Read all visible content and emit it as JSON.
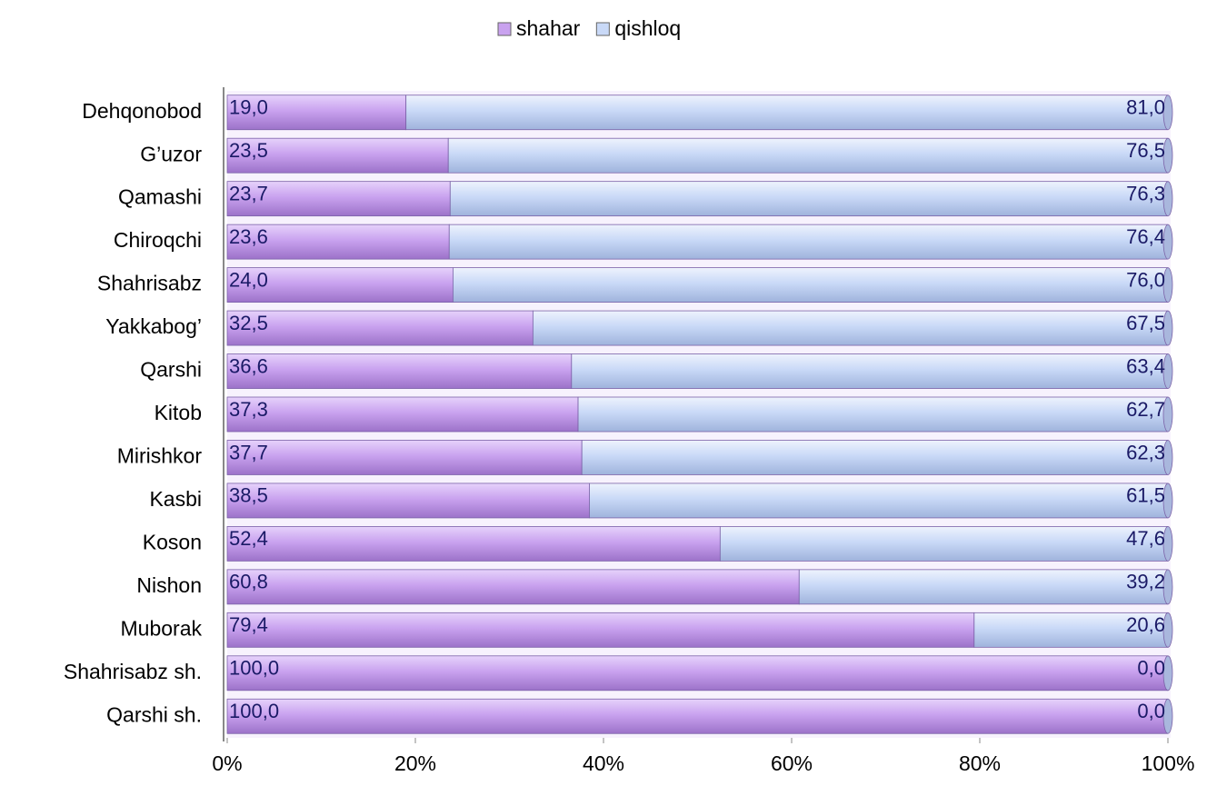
{
  "chart_data": {
    "type": "bar",
    "orientation": "horizontal",
    "stacked": "percent",
    "categories": [
      "Dehqonobod",
      "G’uzor",
      "Qamashi",
      "Chiroqchi",
      "Shahrisabz",
      "Yakkabog’",
      "Qarshi",
      "Kitob",
      "Mirishkor",
      "Kasbi",
      "Koson",
      "Nishon",
      "Muborak",
      "Shahrisabz sh.",
      "Qarshi sh."
    ],
    "series": [
      {
        "name": "shahar",
        "color": "#c9a2ef",
        "values": [
          19.0,
          23.5,
          23.7,
          23.6,
          24.0,
          32.5,
          36.6,
          37.3,
          37.7,
          38.5,
          52.4,
          60.8,
          79.4,
          100.0,
          100.0
        ],
        "value_labels": [
          "19,0",
          "23,5",
          "23,7",
          "23,6",
          "24,0",
          "32,5",
          "36,6",
          "37,3",
          "37,7",
          "38,5",
          "52,4",
          "60,8",
          "79,4",
          "100,0",
          "100,0"
        ]
      },
      {
        "name": "qishloq",
        "color": "#c9d9f7",
        "values": [
          81.0,
          76.5,
          76.3,
          76.4,
          76.0,
          67.5,
          63.4,
          62.7,
          62.3,
          61.5,
          47.6,
          39.2,
          20.6,
          0.0,
          0.0
        ],
        "value_labels": [
          "81,0",
          "76,5",
          "76,3",
          "76,4",
          "76,0",
          "67,5",
          "63,4",
          "62,7",
          "62,3",
          "61,5",
          "47,6",
          "39,2",
          "20,6",
          "0,0",
          "0,0"
        ]
      }
    ],
    "xlim": [
      0,
      100
    ],
    "xticks": [
      {
        "value": 0,
        "label": "0%"
      },
      {
        "value": 20,
        "label": "20%"
      },
      {
        "value": 40,
        "label": "40%"
      },
      {
        "value": 60,
        "label": "60%"
      },
      {
        "value": 80,
        "label": "80%"
      },
      {
        "value": 100,
        "label": "100%"
      }
    ],
    "legend": "top"
  }
}
